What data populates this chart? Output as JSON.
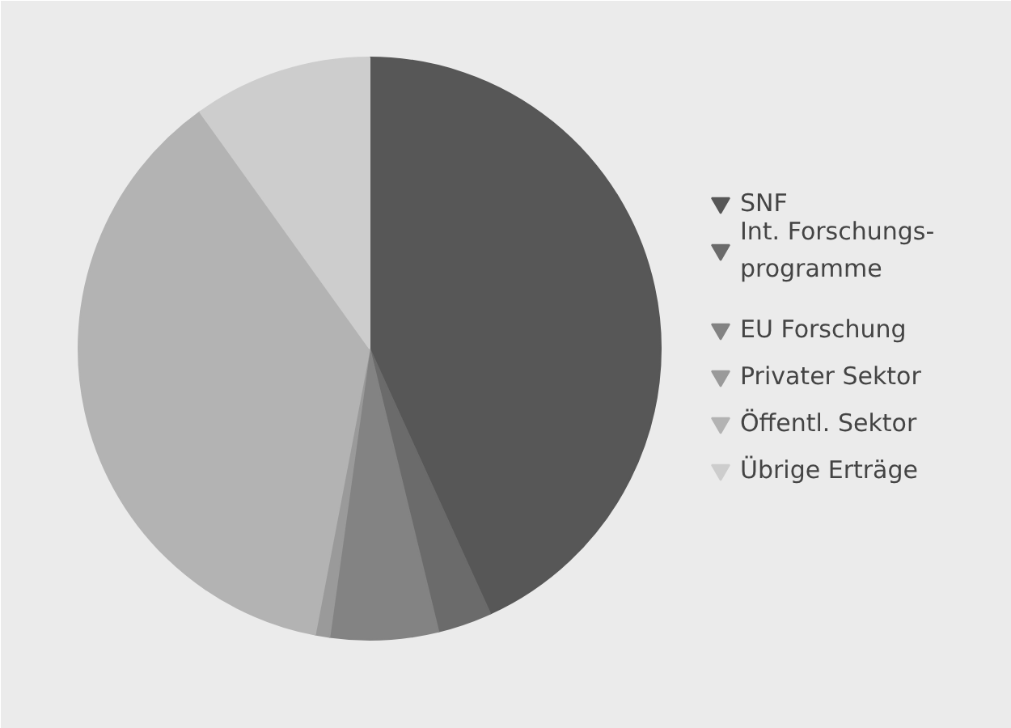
{
  "chart_data": {
    "type": "pie",
    "categories": [
      "SNF",
      "Int. Forschungs-\nprogramme",
      "EU Forschung",
      "Privater Sektor",
      "Öffentl. Sektor",
      "Übrige Erträge"
    ],
    "values": [
      43.2,
      3,
      6,
      0.8,
      37.1,
      9.9
    ],
    "colors": [
      "#575757",
      "#6b6b6b",
      "#838383",
      "#9a9a9a",
      "#b3b3b3",
      "#cdcdcd"
    ],
    "legend": "right"
  }
}
